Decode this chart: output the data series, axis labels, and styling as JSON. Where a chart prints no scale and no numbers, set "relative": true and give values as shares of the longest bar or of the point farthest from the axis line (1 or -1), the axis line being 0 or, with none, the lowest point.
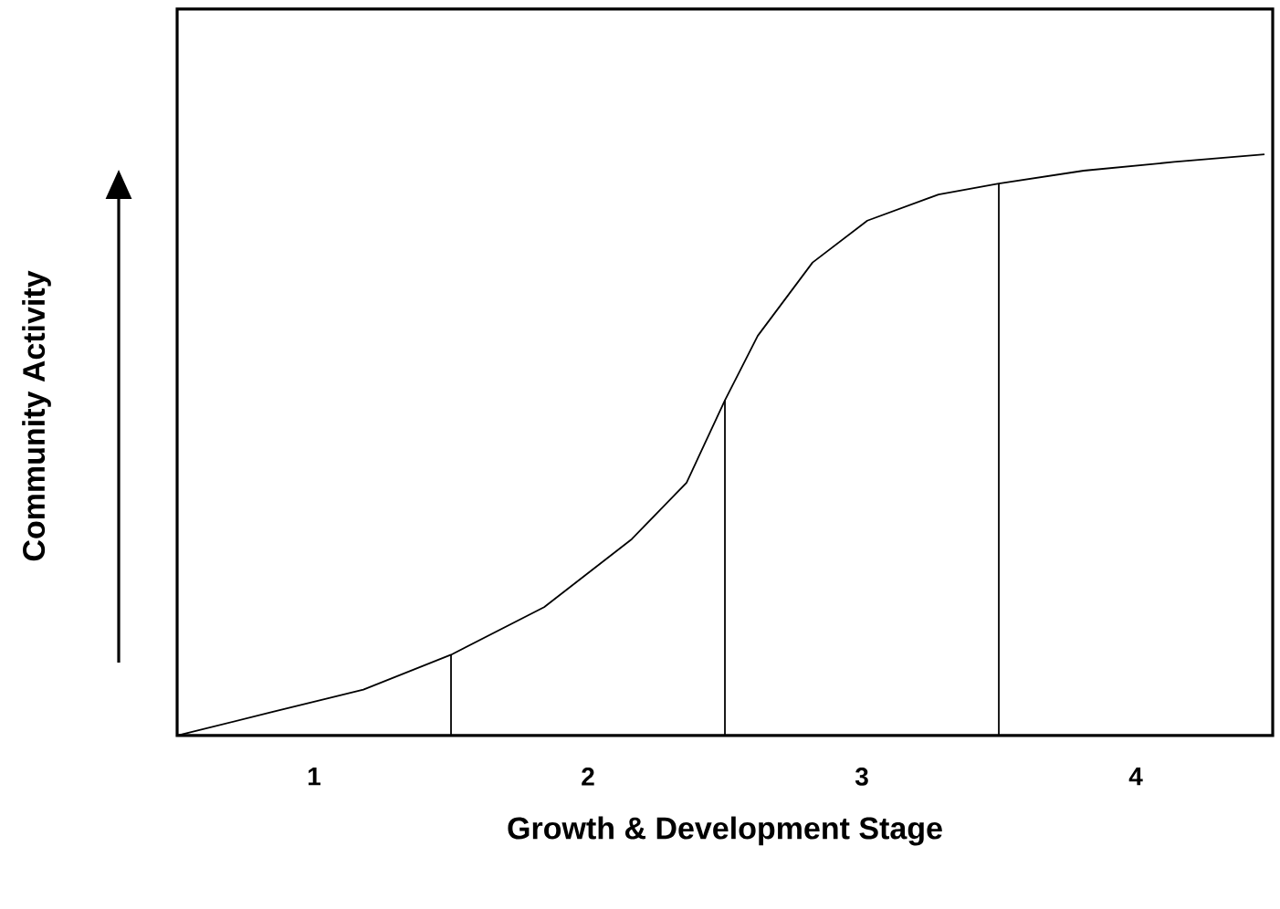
{
  "chart_data": {
    "type": "line",
    "relative": true,
    "xlabel": "Growth & Development Stage",
    "ylabel": "Community Activity",
    "xlim": [
      0,
      4
    ],
    "xticks": [
      {
        "value": 0.5,
        "label": "1"
      },
      {
        "value": 1.5,
        "label": "2"
      },
      {
        "value": 2.5,
        "label": "3"
      },
      {
        "value": 3.5,
        "label": "4"
      }
    ],
    "series": [
      {
        "color": "#000000",
        "x": [
          0,
          0.35,
          0.68,
          1.0,
          1.34,
          1.66,
          1.86,
          2.0,
          2.12,
          2.32,
          2.52,
          2.78,
          3.0,
          3.31,
          3.64,
          3.97
        ],
        "values": [
          0,
          0.041,
          0.079,
          0.139,
          0.221,
          0.338,
          0.435,
          0.577,
          0.688,
          0.814,
          0.886,
          0.931,
          0.95,
          0.972,
          0.987,
          1.0
        ]
      },
      {
        "color": "#000000",
        "x": [
          1,
          1
        ],
        "values": [
          0,
          0.139
        ]
      },
      {
        "color": "#000000",
        "x": [
          2,
          2
        ],
        "values": [
          0,
          0.577
        ]
      },
      {
        "color": "#000000",
        "x": [
          3,
          3
        ],
        "values": [
          0,
          0.95
        ]
      }
    ]
  }
}
